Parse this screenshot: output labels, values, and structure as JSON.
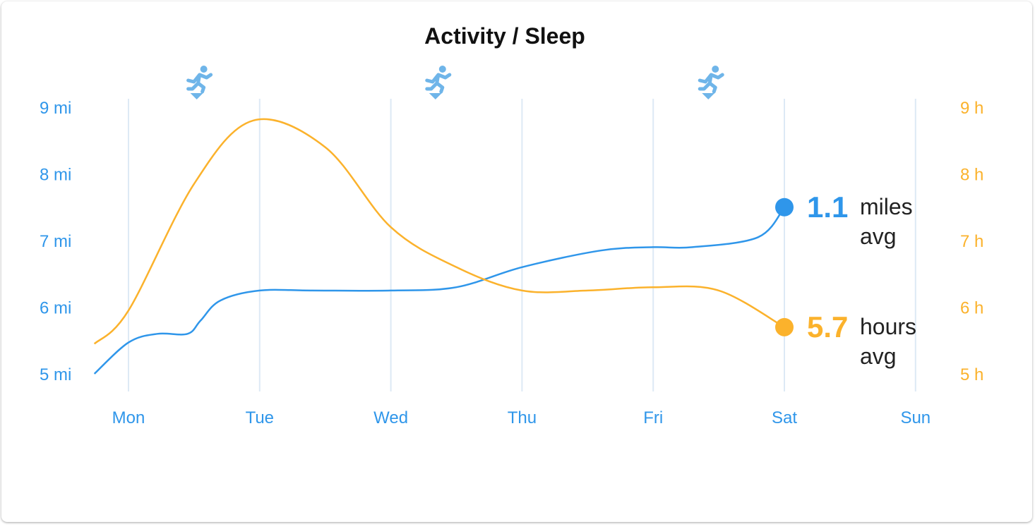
{
  "chart_data": {
    "type": "line",
    "title": "Activity / Sleep",
    "categories": [
      "Mon",
      "Tue",
      "Wed",
      "Thu",
      "Fri",
      "Sat",
      "Sun"
    ],
    "colors": {
      "activity": "#2f96ea",
      "sleep": "#fbb22c",
      "grid": "#dde9f5",
      "tick_left": "#2f96ea",
      "tick_right": "#fbb22c",
      "icon": "#6fb5e9"
    },
    "y_left": {
      "ticks": [
        "9 mi",
        "8 mi",
        "7 mi",
        "6 mi",
        "5 mi"
      ],
      "range": [
        5,
        9
      ]
    },
    "y_right": {
      "ticks": [
        "9 h",
        "8 h",
        "7 h",
        "6 h",
        "5 h"
      ],
      "range": [
        5,
        9
      ]
    },
    "series": [
      {
        "name": "activity",
        "unit": "mi",
        "points": [
          [
            -0.26,
            5.0
          ],
          [
            0.0,
            5.47
          ],
          [
            0.22,
            5.6
          ],
          [
            0.45,
            5.6
          ],
          [
            0.55,
            5.8
          ],
          [
            0.7,
            6.1
          ],
          [
            1.0,
            6.25
          ],
          [
            1.4,
            6.25
          ],
          [
            2.0,
            6.25
          ],
          [
            2.5,
            6.3
          ],
          [
            3.0,
            6.6
          ],
          [
            3.6,
            6.85
          ],
          [
            4.0,
            6.9
          ],
          [
            4.3,
            6.9
          ],
          [
            4.8,
            7.05
          ],
          [
            5.0,
            7.5
          ]
        ],
        "summary_value": "1.1",
        "summary_unit_line1": "miles",
        "summary_unit_line2": "avg"
      },
      {
        "name": "sleep",
        "unit": "h",
        "points": [
          [
            -0.26,
            5.45
          ],
          [
            0.0,
            5.95
          ],
          [
            0.5,
            7.85
          ],
          [
            0.95,
            8.8
          ],
          [
            1.5,
            8.4
          ],
          [
            2.0,
            7.2
          ],
          [
            2.5,
            6.6
          ],
          [
            3.0,
            6.25
          ],
          [
            3.5,
            6.25
          ],
          [
            4.0,
            6.3
          ],
          [
            4.5,
            6.25
          ],
          [
            5.0,
            5.7
          ]
        ],
        "summary_value": "5.7",
        "summary_unit_line1": "hours",
        "summary_unit_line2": "avg"
      }
    ],
    "markers": [
      {
        "icon": "running-icon",
        "x": 0.52
      },
      {
        "icon": "running-icon",
        "x": 2.34
      },
      {
        "icon": "running-icon",
        "x": 4.42
      }
    ]
  }
}
